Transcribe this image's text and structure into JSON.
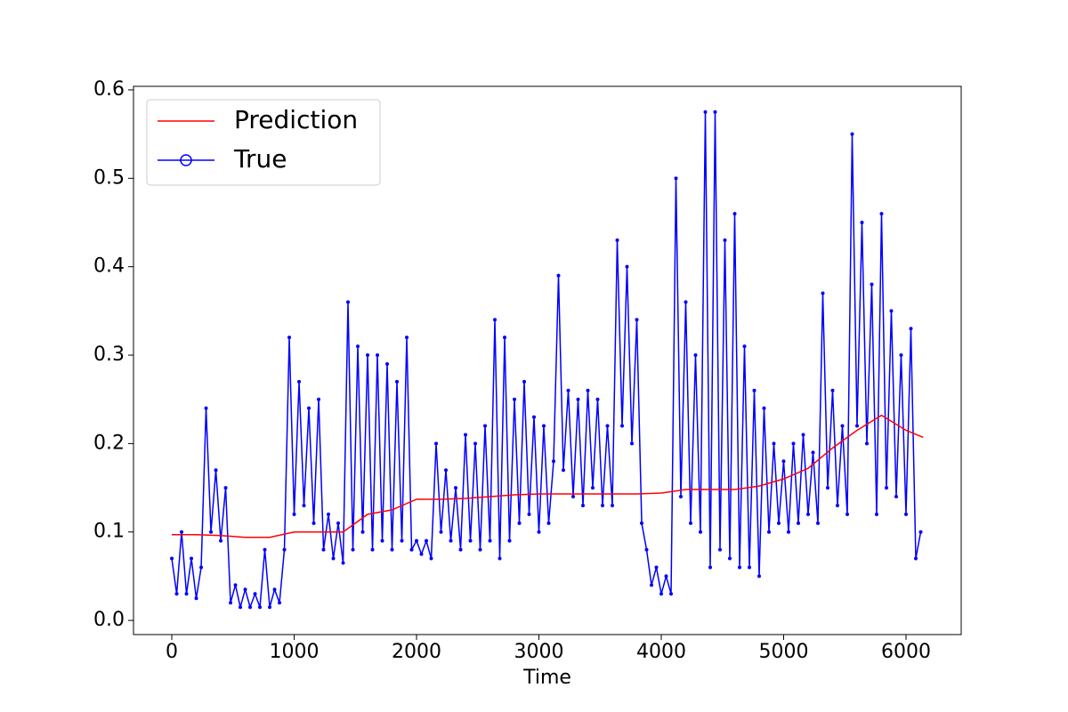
{
  "chart_data": {
    "type": "line",
    "x_label": "Time",
    "xlim": [
      -313,
      6451
    ],
    "ylim": [
      -0.016,
      0.604
    ],
    "xticks": [
      0,
      1000,
      2000,
      3000,
      4000,
      5000,
      6000
    ],
    "yticks": [
      {
        "value": 0,
        "label": "0.0"
      },
      0.1,
      0.2,
      0.3,
      0.4,
      0.5,
      0.6
    ],
    "grid": false,
    "legend": "upper left",
    "series": [
      {
        "name": "Prediction",
        "color": "#ff0000",
        "marker": false,
        "x": [
          0,
          200,
          400,
          600,
          800,
          1000,
          1200,
          1400,
          1600,
          1800,
          2000,
          2200,
          2400,
          2600,
          2800,
          3000,
          3200,
          3400,
          3600,
          3800,
          4000,
          4200,
          4400,
          4600,
          4800,
          5000,
          5200,
          5400,
          5600,
          5800,
          6000,
          6140
        ],
        "values": [
          0.097,
          0.097,
          0.096,
          0.094,
          0.094,
          0.1,
          0.1,
          0.1,
          0.12,
          0.125,
          0.137,
          0.137,
          0.138,
          0.14,
          0.142,
          0.143,
          0.143,
          0.143,
          0.143,
          0.143,
          0.144,
          0.148,
          0.148,
          0.148,
          0.152,
          0.16,
          0.172,
          0.195,
          0.215,
          0.232,
          0.215,
          0.207
        ]
      },
      {
        "name": "True",
        "color": "#0000ff",
        "marker": true,
        "x": [
          0,
          40,
          80,
          120,
          160,
          200,
          240,
          280,
          320,
          360,
          400,
          440,
          480,
          520,
          560,
          600,
          640,
          680,
          720,
          760,
          800,
          840,
          880,
          920,
          960,
          1000,
          1040,
          1080,
          1120,
          1160,
          1200,
          1240,
          1280,
          1320,
          1360,
          1400,
          1440,
          1480,
          1520,
          1560,
          1600,
          1640,
          1680,
          1720,
          1760,
          1800,
          1840,
          1880,
          1920,
          1960,
          2000,
          2040,
          2080,
          2120,
          2160,
          2200,
          2240,
          2280,
          2320,
          2360,
          2400,
          2440,
          2480,
          2520,
          2560,
          2600,
          2640,
          2680,
          2720,
          2760,
          2800,
          2840,
          2880,
          2920,
          2960,
          3000,
          3040,
          3080,
          3120,
          3160,
          3200,
          3240,
          3280,
          3320,
          3360,
          3400,
          3440,
          3480,
          3520,
          3560,
          3600,
          3640,
          3680,
          3720,
          3760,
          3800,
          3840,
          3880,
          3920,
          3960,
          4000,
          4040,
          4080,
          4120,
          4160,
          4200,
          4240,
          4280,
          4320,
          4360,
          4400,
          4440,
          4480,
          4520,
          4560,
          4600,
          4640,
          4680,
          4720,
          4760,
          4800,
          4840,
          4880,
          4920,
          4960,
          5000,
          5040,
          5080,
          5120,
          5160,
          5200,
          5240,
          5280,
          5320,
          5360,
          5400,
          5440,
          5480,
          5520,
          5560,
          5600,
          5640,
          5680,
          5720,
          5760,
          5800,
          5840,
          5880,
          5920,
          5960,
          6000,
          6040,
          6080,
          6120
        ],
        "values": [
          0.07,
          0.03,
          0.1,
          0.03,
          0.07,
          0.025,
          0.06,
          0.24,
          0.1,
          0.17,
          0.09,
          0.15,
          0.02,
          0.04,
          0.015,
          0.035,
          0.015,
          0.03,
          0.015,
          0.08,
          0.015,
          0.035,
          0.02,
          0.08,
          0.32,
          0.12,
          0.27,
          0.13,
          0.24,
          0.11,
          0.25,
          0.08,
          0.12,
          0.07,
          0.11,
          0.065,
          0.36,
          0.08,
          0.31,
          0.1,
          0.3,
          0.08,
          0.3,
          0.09,
          0.29,
          0.08,
          0.27,
          0.09,
          0.32,
          0.08,
          0.09,
          0.075,
          0.09,
          0.07,
          0.2,
          0.1,
          0.17,
          0.09,
          0.15,
          0.08,
          0.21,
          0.09,
          0.2,
          0.08,
          0.22,
          0.09,
          0.34,
          0.07,
          0.32,
          0.09,
          0.25,
          0.11,
          0.27,
          0.12,
          0.23,
          0.1,
          0.22,
          0.11,
          0.18,
          0.39,
          0.17,
          0.26,
          0.14,
          0.25,
          0.13,
          0.26,
          0.15,
          0.25,
          0.13,
          0.22,
          0.13,
          0.43,
          0.22,
          0.4,
          0.2,
          0.34,
          0.11,
          0.08,
          0.04,
          0.06,
          0.03,
          0.05,
          0.03,
          0.5,
          0.14,
          0.36,
          0.11,
          0.3,
          0.1,
          0.575,
          0.06,
          0.575,
          0.08,
          0.43,
          0.07,
          0.46,
          0.06,
          0.31,
          0.06,
          0.26,
          0.05,
          0.24,
          0.1,
          0.2,
          0.11,
          0.18,
          0.1,
          0.2,
          0.11,
          0.21,
          0.12,
          0.19,
          0.11,
          0.37,
          0.15,
          0.26,
          0.13,
          0.22,
          0.12,
          0.55,
          0.22,
          0.45,
          0.2,
          0.38,
          0.12,
          0.46,
          0.15,
          0.35,
          0.14,
          0.3,
          0.12,
          0.33,
          0.07,
          0.1
        ]
      }
    ]
  }
}
